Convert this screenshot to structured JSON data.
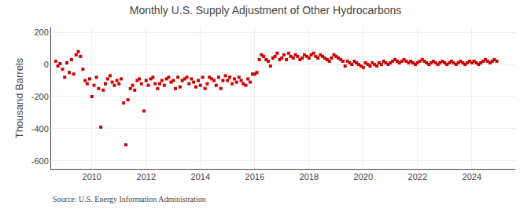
{
  "chart_data": {
    "type": "scatter",
    "title": "Monthly U.S. Supply Adjustment of Other Hydrocarbons",
    "ylabel": "Thousand Barrels",
    "annotations": [
      "Source: U.S. Energy Information Administration"
    ],
    "color": "#cc0000",
    "marker": "square",
    "grid": true,
    "xlim": [
      2008.5,
      2025.6
    ],
    "xticks": [
      2010,
      2012,
      2014,
      2016,
      2018,
      2020,
      2022,
      2024
    ],
    "ylim": [
      -650,
      230
    ],
    "yticks": [
      -600,
      -400,
      -200,
      0,
      200
    ],
    "x": [
      2008.67,
      2008.75,
      2008.83,
      2008.92,
      2009.0,
      2009.08,
      2009.17,
      2009.25,
      2009.33,
      2009.42,
      2009.5,
      2009.58,
      2009.67,
      2009.75,
      2009.83,
      2009.92,
      2010.0,
      2010.08,
      2010.17,
      2010.25,
      2010.33,
      2010.42,
      2010.5,
      2010.58,
      2010.67,
      2010.75,
      2010.83,
      2010.92,
      2011.0,
      2011.08,
      2011.17,
      2011.25,
      2011.33,
      2011.42,
      2011.5,
      2011.58,
      2011.67,
      2011.75,
      2011.83,
      2011.92,
      2012.0,
      2012.08,
      2012.17,
      2012.25,
      2012.33,
      2012.42,
      2012.5,
      2012.58,
      2012.67,
      2012.75,
      2012.83,
      2012.92,
      2013.0,
      2013.08,
      2013.17,
      2013.25,
      2013.33,
      2013.42,
      2013.5,
      2013.58,
      2013.67,
      2013.75,
      2013.83,
      2013.92,
      2014.0,
      2014.08,
      2014.17,
      2014.25,
      2014.33,
      2014.42,
      2014.5,
      2014.58,
      2014.67,
      2014.75,
      2014.83,
      2014.92,
      2015.0,
      2015.08,
      2015.17,
      2015.25,
      2015.33,
      2015.42,
      2015.5,
      2015.58,
      2015.67,
      2015.75,
      2015.83,
      2015.92,
      2016.0,
      2016.08,
      2016.17,
      2016.25,
      2016.33,
      2016.42,
      2016.5,
      2016.58,
      2016.67,
      2016.75,
      2016.83,
      2016.92,
      2017.0,
      2017.08,
      2017.17,
      2017.25,
      2017.33,
      2017.42,
      2017.5,
      2017.58,
      2017.67,
      2017.75,
      2017.83,
      2017.92,
      2018.0,
      2018.08,
      2018.17,
      2018.25,
      2018.33,
      2018.42,
      2018.5,
      2018.58,
      2018.67,
      2018.75,
      2018.83,
      2018.92,
      2019.0,
      2019.08,
      2019.17,
      2019.25,
      2019.33,
      2019.42,
      2019.5,
      2019.58,
      2019.67,
      2019.75,
      2019.83,
      2019.92,
      2020.0,
      2020.08,
      2020.17,
      2020.25,
      2020.33,
      2020.42,
      2020.5,
      2020.58,
      2020.67,
      2020.75,
      2020.83,
      2020.92,
      2021.0,
      2021.08,
      2021.17,
      2021.25,
      2021.33,
      2021.42,
      2021.5,
      2021.58,
      2021.67,
      2021.75,
      2021.83,
      2021.92,
      2022.0,
      2022.08,
      2022.17,
      2022.25,
      2022.33,
      2022.42,
      2022.5,
      2022.58,
      2022.67,
      2022.75,
      2022.83,
      2022.92,
      2023.0,
      2023.08,
      2023.17,
      2023.25,
      2023.33,
      2023.42,
      2023.5,
      2023.58,
      2023.67,
      2023.75,
      2023.83,
      2023.92,
      2024.0,
      2024.08,
      2024.17,
      2024.25,
      2024.33,
      2024.42,
      2024.5,
      2024.58,
      2024.67,
      2024.75,
      2024.83,
      2024.92
    ],
    "values": [
      20,
      -10,
      5,
      -30,
      -80,
      10,
      -50,
      30,
      -60,
      60,
      80,
      50,
      -30,
      -100,
      -120,
      -90,
      -200,
      -130,
      -80,
      -150,
      -390,
      -160,
      -120,
      -90,
      -70,
      -110,
      -130,
      -100,
      -120,
      -90,
      -240,
      -500,
      -220,
      -150,
      -130,
      -160,
      -100,
      -90,
      -120,
      -290,
      -100,
      -130,
      -90,
      -80,
      -120,
      -150,
      -120,
      -100,
      -130,
      -90,
      -80,
      -110,
      -100,
      -150,
      -80,
      -140,
      -100,
      -90,
      -80,
      -120,
      -90,
      -110,
      -140,
      -100,
      -130,
      -80,
      -150,
      -120,
      -80,
      -90,
      -100,
      -130,
      -80,
      -150,
      -100,
      -70,
      -100,
      -80,
      -120,
      -90,
      -110,
      -80,
      -100,
      -120,
      -130,
      -90,
      -110,
      -60,
      -60,
      -50,
      30,
      60,
      50,
      30,
      20,
      -10,
      40,
      50,
      70,
      30,
      40,
      60,
      30,
      70,
      50,
      40,
      60,
      50,
      30,
      40,
      60,
      50,
      40,
      60,
      70,
      50,
      40,
      60,
      50,
      40,
      30,
      20,
      40,
      60,
      50,
      40,
      30,
      20,
      -10,
      20,
      10,
      0,
      20,
      10,
      0,
      -10,
      -20,
      10,
      0,
      -10,
      10,
      0,
      -10,
      10,
      0,
      20,
      10,
      0,
      10,
      20,
      30,
      20,
      10,
      20,
      30,
      20,
      10,
      20,
      10,
      0,
      10,
      20,
      30,
      20,
      10,
      0,
      10,
      20,
      10,
      0,
      10,
      20,
      10,
      0,
      10,
      20,
      10,
      0,
      10,
      20,
      10,
      0,
      10,
      20,
      10,
      20,
      10,
      0,
      10,
      20,
      30,
      20,
      10,
      20,
      30,
      20
    ]
  }
}
